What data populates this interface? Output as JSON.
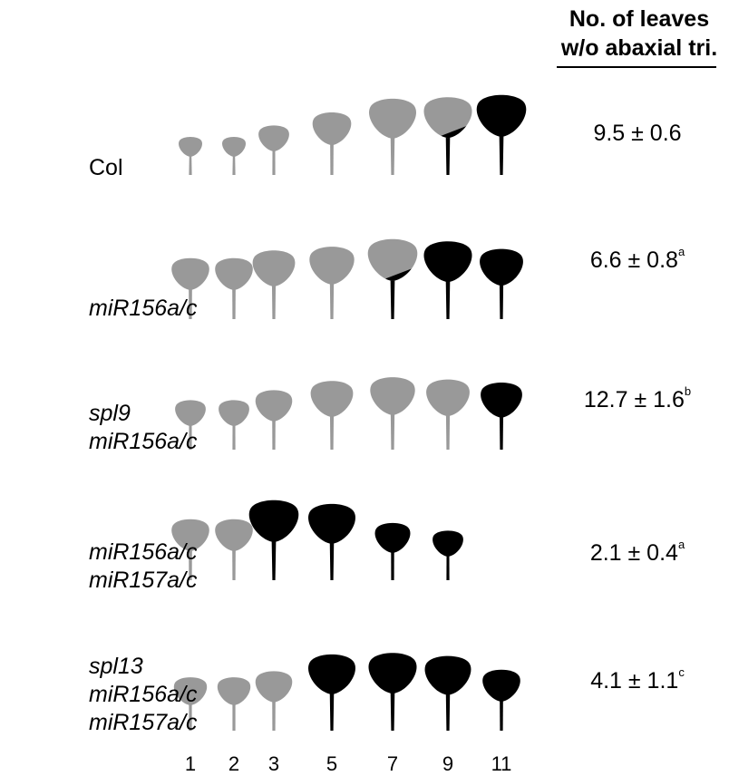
{
  "header": {
    "line1": "No. of leaves",
    "line2": "w/o abaxial tri."
  },
  "leaf_numbers": [
    "1",
    "2",
    "3",
    "5",
    "7",
    "9",
    "11"
  ],
  "colors": {
    "juvenile": "#999999",
    "adult": "#000000"
  },
  "rows": [
    {
      "genotype": [
        "Col"
      ],
      "italic": false,
      "value": "9.5 ± 0.6",
      "sup": "",
      "leaves": [
        {
          "s": 0.5,
          "t": "g"
        },
        {
          "s": 0.5,
          "t": "g"
        },
        {
          "s": 0.65,
          "t": "g"
        },
        {
          "s": 0.82,
          "t": "g"
        },
        {
          "s": 1.0,
          "t": "g"
        },
        {
          "s": 1.02,
          "t": "m"
        },
        {
          "s": 1.05,
          "t": "b"
        }
      ]
    },
    {
      "genotype": [
        "miR156a/c"
      ],
      "italic": true,
      "value": "6.6 ± 0.8",
      "sup": "a",
      "leaves": [
        {
          "s": 0.8,
          "t": "g"
        },
        {
          "s": 0.8,
          "t": "g"
        },
        {
          "s": 0.9,
          "t": "g"
        },
        {
          "s": 0.95,
          "t": "g"
        },
        {
          "s": 1.05,
          "t": "m"
        },
        {
          "s": 1.02,
          "t": "b"
        },
        {
          "s": 0.92,
          "t": "b"
        }
      ]
    },
    {
      "genotype": [
        "spl9",
        "miR156a/c"
      ],
      "italic": true,
      "value": "12.7 ± 1.6",
      "sup": "b",
      "leaves": [
        {
          "s": 0.65,
          "t": "g"
        },
        {
          "s": 0.65,
          "t": "g"
        },
        {
          "s": 0.78,
          "t": "g"
        },
        {
          "s": 0.9,
          "t": "g"
        },
        {
          "s": 0.95,
          "t": "g"
        },
        {
          "s": 0.92,
          "t": "g"
        },
        {
          "s": 0.88,
          "t": "b"
        }
      ]
    },
    {
      "genotype": [
        "miR156a/c",
        "miR157a/c"
      ],
      "italic": true,
      "value": "2.1 ± 0.4",
      "sup": "a",
      "leaves": [
        {
          "s": 0.8,
          "t": "g"
        },
        {
          "s": 0.8,
          "t": "g"
        },
        {
          "s": 1.05,
          "t": "b"
        },
        {
          "s": 1.0,
          "t": "b"
        },
        {
          "s": 0.75,
          "t": "b"
        },
        {
          "s": 0.65,
          "t": "b"
        }
      ]
    },
    {
      "genotype": [
        "spl13",
        "miR156a/c",
        "miR157a/c"
      ],
      "italic": true,
      "value": "4.1 ± 1.1",
      "sup": "c",
      "leaves": [
        {
          "s": 0.7,
          "t": "g"
        },
        {
          "s": 0.7,
          "t": "g"
        },
        {
          "s": 0.78,
          "t": "g"
        },
        {
          "s": 1.0,
          "t": "b"
        },
        {
          "s": 1.02,
          "t": "b"
        },
        {
          "s": 0.98,
          "t": "b"
        },
        {
          "s": 0.8,
          "t": "b"
        }
      ]
    }
  ]
}
